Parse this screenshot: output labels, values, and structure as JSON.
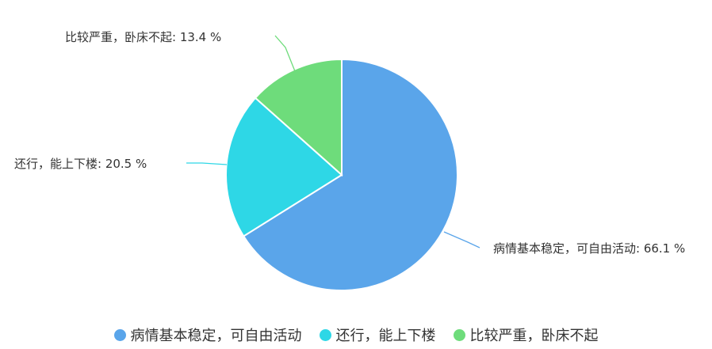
{
  "chart_data": {
    "type": "pie",
    "start": "top",
    "direction": "clockwise",
    "slices": [
      {
        "name": "病情基本稳定，可自由活动",
        "value": 66.1,
        "label": "病情基本稳定，可自由活动: 66.1 %",
        "color": "#5aa5ea"
      },
      {
        "name": "还行，能上下楼",
        "value": 20.5,
        "label": "还行，能上下楼: 20.5 %",
        "color": "#2ed7e6"
      },
      {
        "name": "比较严重，卧床不起",
        "value": 13.4,
        "label": "比较严重，卧床不起: 13.4 %",
        "color": "#6edc7b"
      }
    ],
    "legend_position": "bottom"
  }
}
